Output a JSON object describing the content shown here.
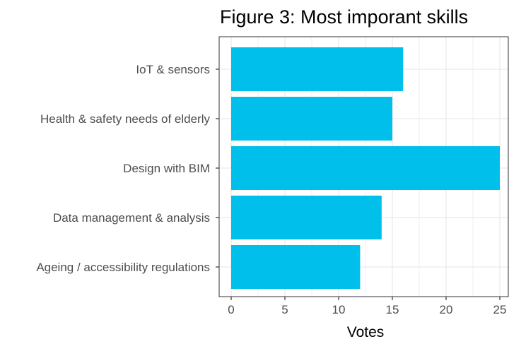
{
  "chart_data": {
    "type": "bar",
    "orientation": "horizontal",
    "title": "Figure 3: Most imporant skills",
    "xlabel": "Votes",
    "ylabel": "",
    "categories": [
      "IoT & sensors",
      "Health & safety needs of elderly",
      "Design with BIM",
      "Data management & analysis",
      "Ageing / accessibility regulations"
    ],
    "values": [
      16,
      15,
      25,
      14,
      12
    ],
    "xlim": [
      0,
      25
    ],
    "xticks": [
      "0",
      "5",
      "10",
      "15",
      "20",
      "25"
    ],
    "grid": true,
    "bar_color": "#00BFEA",
    "panel_border_color": "#333333",
    "grid_color": "#EBEBEB"
  }
}
